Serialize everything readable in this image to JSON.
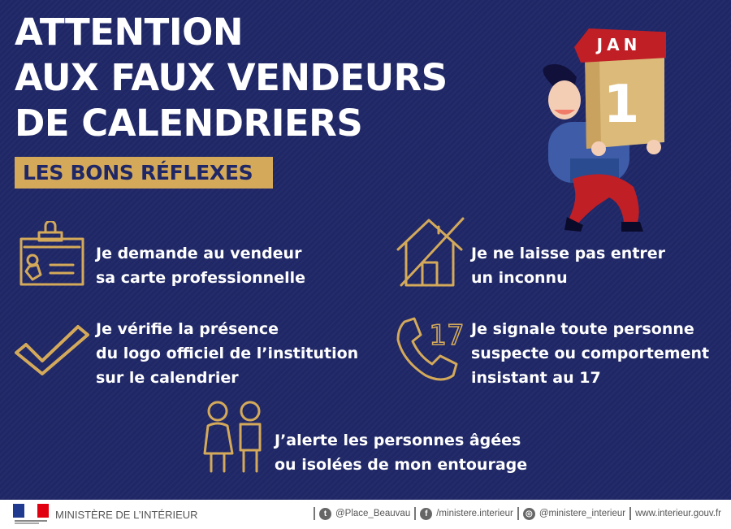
{
  "title": {
    "lines": [
      "ATTENTION",
      "AUX FAUX VENDEURS",
      "DE CALENDRIERS"
    ]
  },
  "badge": "LES BONS RÉFLEXES",
  "illustration": {
    "month": "JAN",
    "day": "1"
  },
  "items": [
    {
      "icon": "id-badge-icon",
      "lines": [
        "Je demande au vendeur",
        "sa carte professionnelle"
      ]
    },
    {
      "icon": "house-crossed-icon",
      "lines": [
        "Je ne laisse pas entrer",
        "un inconnu"
      ]
    },
    {
      "icon": "checkmark-icon",
      "lines": [
        "Je vérifie la présence",
        "du logo officiel de l’institution",
        "sur le calendrier"
      ]
    },
    {
      "icon": "phone-icon",
      "icon_text": "17",
      "lines": [
        "Je signale toute personne",
        "suspecte ou comportement",
        "insistant au 17"
      ]
    },
    {
      "icon": "elderly-people-icon",
      "lines": [
        "J’alerte les personnes âgées",
        "ou isolées de mon entourage"
      ]
    }
  ],
  "footer": {
    "ministry": "MINISTÈRE DE L’INTÉRIEUR",
    "twitter": "@Place_Beauvau",
    "facebook": "/ministere.interieur",
    "instagram": "@ministere_interieur",
    "website": "www.interieur.gouv.fr"
  },
  "colors": {
    "background": "#1f2766",
    "gold": "#d4aa5a",
    "red": "#c01f26"
  }
}
